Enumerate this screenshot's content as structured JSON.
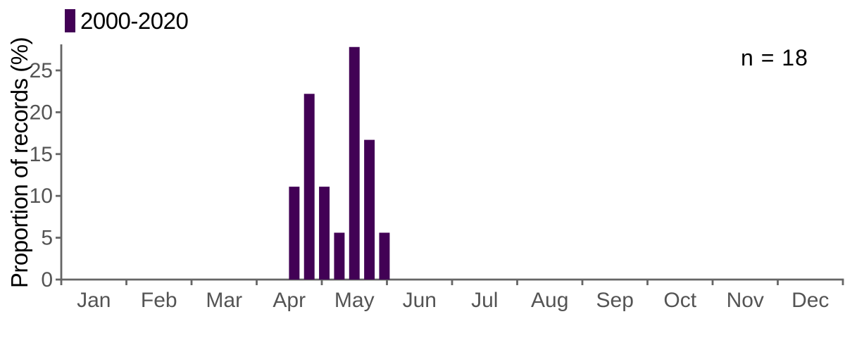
{
  "chart_data": {
    "type": "bar",
    "title": "",
    "xlabel": "",
    "ylabel": "Proportion of records (%)",
    "x_axis": {
      "tick_labels": [
        "Jan",
        "Feb",
        "Mar",
        "Apr",
        "May",
        "Jun",
        "Jul",
        "Aug",
        "Sep",
        "Oct",
        "Nov",
        "Dec"
      ],
      "bin_unit": "week",
      "bins_per_year": 52
    },
    "y_axis": {
      "ticks": [
        0,
        5,
        10,
        15,
        20,
        25
      ],
      "min": 0,
      "max": 28.2,
      "grid": false
    },
    "legend": {
      "position": "top-left",
      "entries": [
        {
          "label": "2000-2020",
          "color": "#420155"
        }
      ]
    },
    "annotations": [
      {
        "text": "n = 18",
        "position": "top-right"
      }
    ],
    "series": [
      {
        "name": "2000-2020",
        "color": "#420155",
        "n": 18,
        "points": [
          {
            "week_of_year": 16,
            "value": 11.1
          },
          {
            "week_of_year": 17,
            "value": 22.2
          },
          {
            "week_of_year": 18,
            "value": 11.1
          },
          {
            "week_of_year": 19,
            "value": 5.6
          },
          {
            "week_of_year": 20,
            "value": 27.8
          },
          {
            "week_of_year": 21,
            "value": 16.7
          },
          {
            "week_of_year": 22,
            "value": 5.6
          }
        ]
      }
    ],
    "style": {
      "bar_color": "#420155",
      "axis_color": "#666666",
      "tick_label_color": "#545454",
      "text_color": "#000000",
      "background": "#ffffff"
    }
  }
}
